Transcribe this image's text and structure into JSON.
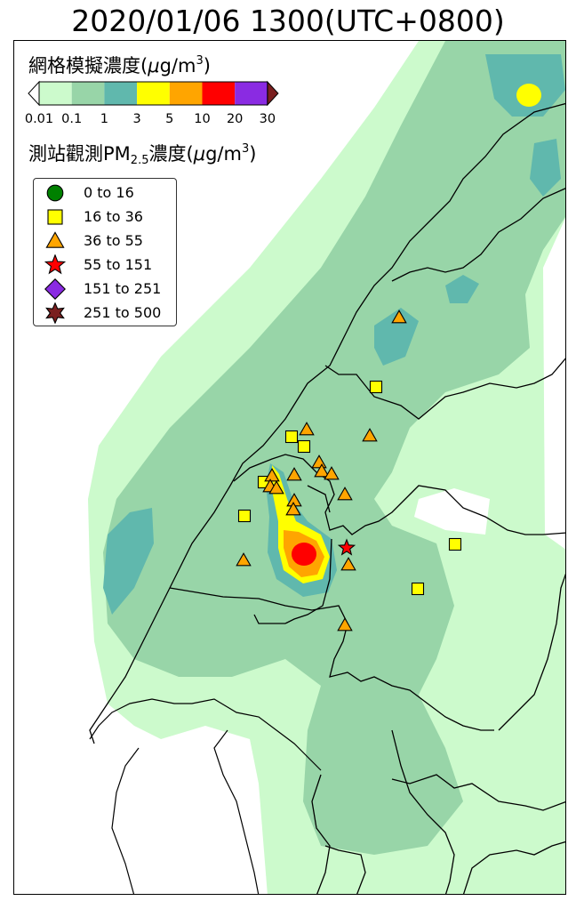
{
  "title": "2020/01/06 1300(UTC+0800)",
  "colorbar": {
    "title_prefix": "網格模擬濃度(",
    "title_mu": "μ",
    "title_unit": "g/m",
    "title_exp": "3",
    "title_suffix": ")",
    "ticks": [
      "0.01",
      "0.1",
      "1",
      "3",
      "5",
      "10",
      "20",
      "30"
    ],
    "colors": [
      "#ffffff",
      "#ccfacc",
      "#98d5a8",
      "#60b8ad",
      "#ffff00",
      "#ffa500",
      "#ff0000",
      "#8a2be2",
      "#7a1f1f"
    ]
  },
  "observation": {
    "title_prefix": "測站觀測PM",
    "title_sub": "2.5",
    "title_mid": "濃度(",
    "title_mu": "μ",
    "title_unit": "g/m",
    "title_exp": "3",
    "title_suffix": ")"
  },
  "legend": {
    "items": [
      {
        "label": "0 to 16",
        "marker": "circle",
        "color": "#008000"
      },
      {
        "label": "16 to 36",
        "marker": "square",
        "color": "#ffff00"
      },
      {
        "label": "36 to 55",
        "marker": "triangle",
        "color": "#ffa500"
      },
      {
        "label": "55 to 151",
        "marker": "star",
        "color": "#ff0000"
      },
      {
        "label": "151 to 251",
        "marker": "diamond",
        "color": "#8a2be2"
      },
      {
        "label": "251 to 500",
        "marker": "star6",
        "color": "#7a1f1f"
      }
    ]
  },
  "stations": [
    {
      "type": "triangle",
      "color": "#ffa500"
    },
    {
      "type": "square",
      "color": "#ffff00"
    },
    {
      "type": "square",
      "color": "#ffff00"
    },
    {
      "type": "square",
      "color": "#ffff00"
    },
    {
      "type": "triangle",
      "color": "#ffa500"
    },
    {
      "type": "triangle",
      "color": "#ffa500"
    },
    {
      "type": "triangle",
      "color": "#ffa500"
    },
    {
      "type": "triangle",
      "color": "#ffa500"
    },
    {
      "type": "triangle",
      "color": "#ffa500"
    },
    {
      "type": "square",
      "color": "#ffff00"
    },
    {
      "type": "triangle",
      "color": "#ffa500"
    },
    {
      "type": "triangle",
      "color": "#ffa500"
    },
    {
      "type": "triangle",
      "color": "#ffa500"
    },
    {
      "type": "triangle",
      "color": "#ffa500"
    },
    {
      "type": "triangle",
      "color": "#ffa500"
    },
    {
      "type": "triangle",
      "color": "#ffa500"
    },
    {
      "type": "square",
      "color": "#ffff00"
    },
    {
      "type": "triangle",
      "color": "#ffa500"
    },
    {
      "type": "star",
      "color": "#ff0000"
    },
    {
      "type": "triangle",
      "color": "#ffa500"
    },
    {
      "type": "square",
      "color": "#ffff00"
    },
    {
      "type": "square",
      "color": "#ffff00"
    },
    {
      "type": "triangle",
      "color": "#ffa500"
    }
  ]
}
